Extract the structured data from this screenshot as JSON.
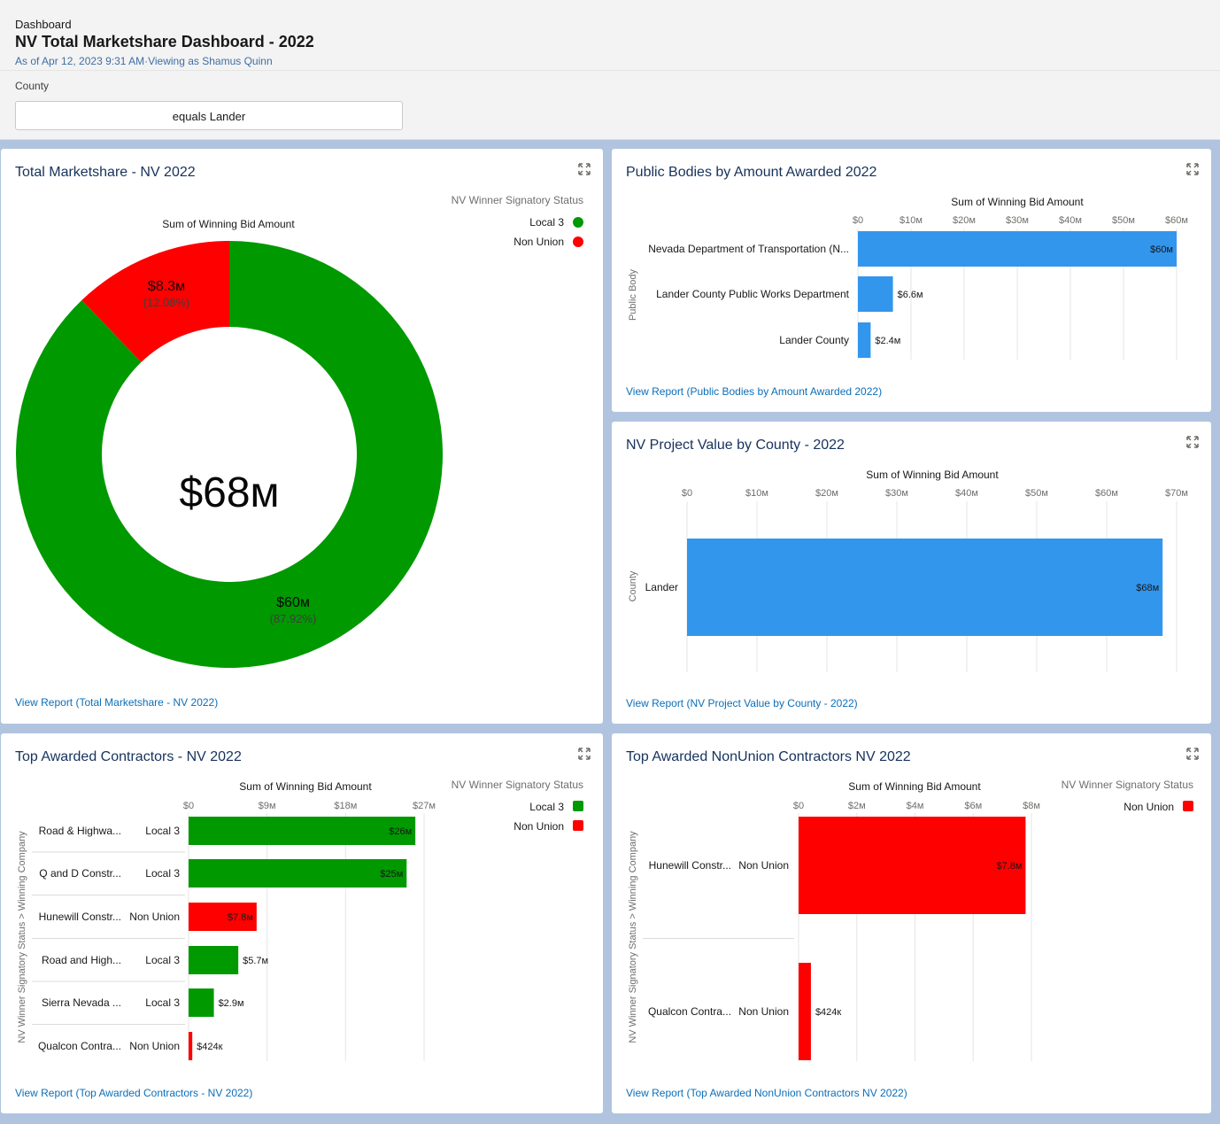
{
  "header": {
    "breadcrumb": "Dashboard",
    "title": "NV Total Marketshare Dashboard - 2022",
    "as_of": "As of Apr 12, 2023 9:31 AM·Viewing as Shamus Quinn",
    "filter_label": "County",
    "filter_value": "equals Lander"
  },
  "colors": {
    "local3": "#009900",
    "nonunion": "#ff0000",
    "bar": "#3296ed",
    "link": "#0b6eb9"
  },
  "panels": {
    "marketshare": {
      "title": "Total Marketshare - NV 2022",
      "subtitle": "Sum of Winning Bid Amount",
      "legend_title": "NV Winner Signatory Status",
      "center_label": "$68м",
      "slices": [
        {
          "name": "Local 3",
          "label": "$60м",
          "pct_label": "(87.92%)"
        },
        {
          "name": "Non Union",
          "label": "$8.3м",
          "pct_label": "(12.08%)"
        }
      ],
      "link": "View Report (Total Marketshare - NV 2022)"
    },
    "public_bodies": {
      "title": "Public Bodies by Amount Awarded 2022",
      "subtitle": "Sum of Winning Bid Amount",
      "ylabel": "Public Body",
      "ticks": [
        "$0",
        "$10м",
        "$20м",
        "$30м",
        "$40м",
        "$50м",
        "$60м"
      ],
      "categories": [
        "Nevada Department of Transportation (N...",
        "Lander County Public Works Department",
        "Lander County"
      ],
      "bar_labels": [
        "$60м",
        "$6.6м",
        "$2.4м"
      ],
      "link": "View Report (Public Bodies by Amount Awarded 2022)"
    },
    "county": {
      "title": "NV Project Value by County - 2022",
      "subtitle": "Sum of Winning Bid Amount",
      "ylabel": "County",
      "ticks": [
        "$0",
        "$10м",
        "$20м",
        "$30м",
        "$40м",
        "$50м",
        "$60м",
        "$70м"
      ],
      "categories": [
        "Lander"
      ],
      "bar_labels": [
        "$68м"
      ],
      "link": "View Report (NV Project Value by County - 2022)"
    },
    "top_contractors": {
      "title": "Top Awarded Contractors - NV 2022",
      "subtitle": "Sum of Winning Bid Amount",
      "ylabel": "NV Winner Signatory Status  >  Winning Company",
      "legend_title": "NV Winner Signatory Status",
      "legend": [
        "Local 3",
        "Non Union"
      ],
      "ticks": [
        "$0",
        "$9м",
        "$18м",
        "$27м"
      ],
      "rows": [
        {
          "company": "Road & Highwa...",
          "status": "Local 3",
          "label": "$26м"
        },
        {
          "company": "Q and D Constr...",
          "status": "Local 3",
          "label": "$25м"
        },
        {
          "company": "Hunewill Constr...",
          "status": "Non Union",
          "label": "$7.8м"
        },
        {
          "company": "Road and High...",
          "status": "Local 3",
          "label": "$5.7м"
        },
        {
          "company": "Sierra Nevada ...",
          "status": "Local 3",
          "label": "$2.9м"
        },
        {
          "company": "Qualcon Contra...",
          "status": "Non Union",
          "label": "$424к"
        }
      ],
      "link": "View Report (Top Awarded Contractors - NV 2022)"
    },
    "nonunion": {
      "title": "Top Awarded NonUnion Contractors NV 2022",
      "subtitle": "Sum of Winning Bid Amount",
      "ylabel": "NV Winner Signatory Status  >  Winning Company",
      "legend_title": "NV Winner Signatory Status",
      "legend": [
        "Non Union"
      ],
      "ticks": [
        "$0",
        "$2м",
        "$4м",
        "$6м",
        "$8м"
      ],
      "rows": [
        {
          "company": "Hunewill Constr...",
          "status": "Non Union",
          "label": "$7.8м"
        },
        {
          "company": "Qualcon Contra...",
          "status": "Non Union",
          "label": "$424к"
        }
      ],
      "link": "View Report (Top Awarded NonUnion Contractors NV 2022)"
    }
  },
  "chart_data": [
    {
      "type": "pie",
      "title": "Total Marketshare - NV 2022",
      "subtitle": "Sum of Winning Bid Amount",
      "categories": [
        "Local 3",
        "Non Union"
      ],
      "values": [
        60,
        8.3
      ],
      "percent": [
        87.92,
        12.08
      ],
      "total": 68,
      "legend": "top-right"
    },
    {
      "type": "bar",
      "title": "Public Bodies by Amount Awarded 2022",
      "xlabel": "Sum of Winning Bid Amount",
      "ylabel": "Public Body",
      "categories": [
        "Nevada Department of Transportation (N...",
        "Lander County Public Works Department",
        "Lander County"
      ],
      "values": [
        60,
        6.6,
        2.4
      ],
      "xlim": [
        0,
        60
      ]
    },
    {
      "type": "bar",
      "title": "NV Project Value by County - 2022",
      "xlabel": "Sum of Winning Bid Amount",
      "ylabel": "County",
      "categories": [
        "Lander"
      ],
      "values": [
        68
      ],
      "xlim": [
        0,
        70
      ]
    },
    {
      "type": "bar",
      "title": "Top Awarded Contractors - NV 2022",
      "xlabel": "Sum of Winning Bid Amount",
      "ylabel": "NV Winner Signatory Status  >  Winning Company",
      "categories": [
        "Road & Highwa...",
        "Q and D Constr...",
        "Hunewill Constr...",
        "Road and High...",
        "Sierra Nevada ...",
        "Qualcon Contra..."
      ],
      "series_status": [
        "Local 3",
        "Local 3",
        "Non Union",
        "Local 3",
        "Local 3",
        "Non Union"
      ],
      "values": [
        26,
        25,
        7.8,
        5.7,
        2.9,
        0.424
      ],
      "xlim": [
        0,
        27
      ],
      "legend": "top-right"
    },
    {
      "type": "bar",
      "title": "Top Awarded NonUnion Contractors NV 2022",
      "xlabel": "Sum of Winning Bid Amount",
      "ylabel": "NV Winner Signatory Status  >  Winning Company",
      "categories": [
        "Hunewill Constr...",
        "Qualcon Contra..."
      ],
      "values": [
        7.8,
        0.424
      ],
      "xlim": [
        0,
        8
      ],
      "legend": "top-right"
    }
  ]
}
